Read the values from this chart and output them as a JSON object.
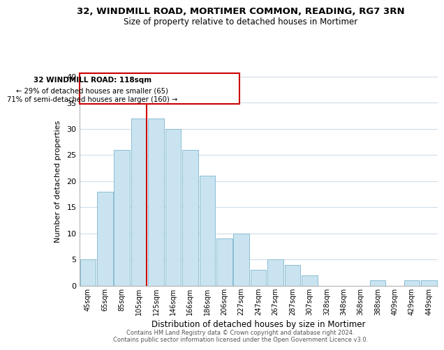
{
  "title": "32, WINDMILL ROAD, MORTIMER COMMON, READING, RG7 3RN",
  "subtitle": "Size of property relative to detached houses in Mortimer",
  "xlabel": "Distribution of detached houses by size in Mortimer",
  "ylabel": "Number of detached properties",
  "bar_labels": [
    "45sqm",
    "65sqm",
    "85sqm",
    "105sqm",
    "125sqm",
    "146sqm",
    "166sqm",
    "186sqm",
    "206sqm",
    "227sqm",
    "247sqm",
    "267sqm",
    "287sqm",
    "307sqm",
    "328sqm",
    "348sqm",
    "368sqm",
    "388sqm",
    "409sqm",
    "429sqm",
    "449sqm"
  ],
  "bar_heights": [
    5,
    18,
    26,
    32,
    32,
    30,
    26,
    21,
    9,
    10,
    3,
    5,
    4,
    2,
    0,
    0,
    0,
    1,
    0,
    1,
    1
  ],
  "bar_color": "#c9e4f0",
  "bar_edge_color": "#8bbdd4",
  "property_line_color": "#cc0000",
  "annotation_lines": [
    "32 WINDMILL ROAD: 118sqm",
    "← 29% of detached houses are smaller (65)",
    "71% of semi-detached houses are larger (160) →"
  ],
  "ylim": [
    0,
    40
  ],
  "footnote1": "Contains HM Land Registry data © Crown copyright and database right 2024.",
  "footnote2": "Contains public sector information licensed under the Open Government Licence v3.0.",
  "background_color": "#ffffff",
  "grid_color": "#d0dce8"
}
